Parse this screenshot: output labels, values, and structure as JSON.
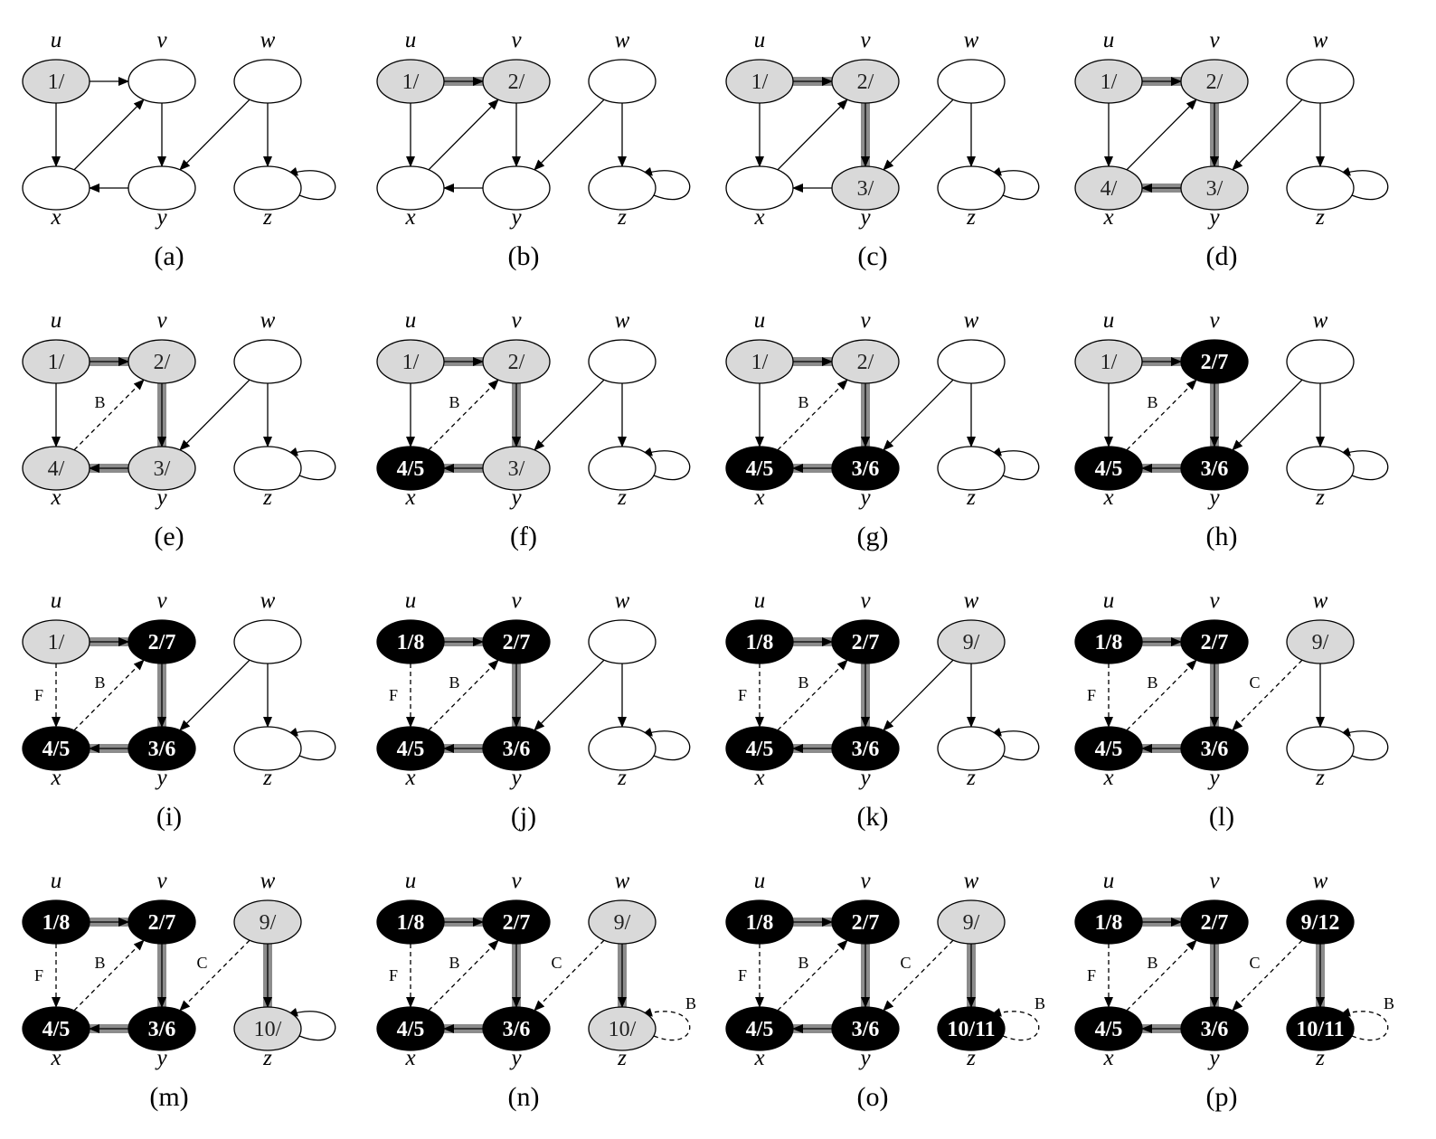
{
  "colors": {
    "white": "#ffffff",
    "gray": "#d9d9d9",
    "black": "#000000",
    "tree_edge": "#8c8c8c"
  },
  "vertex_names": [
    "u",
    "v",
    "w",
    "x",
    "y",
    "z"
  ],
  "edges": [
    {
      "from": "u",
      "to": "v"
    },
    {
      "from": "u",
      "to": "x"
    },
    {
      "from": "x",
      "to": "v"
    },
    {
      "from": "v",
      "to": "y"
    },
    {
      "from": "y",
      "to": "x"
    },
    {
      "from": "w",
      "to": "y"
    },
    {
      "from": "w",
      "to": "z"
    },
    {
      "from": "z",
      "to": "z"
    }
  ],
  "panels": [
    {
      "caption": "(a)",
      "vertices": {
        "u": {
          "color": "gray",
          "label": "1/"
        },
        "v": {
          "color": "white",
          "label": ""
        },
        "w": {
          "color": "white",
          "label": ""
        },
        "x": {
          "color": "white",
          "label": ""
        },
        "y": {
          "color": "white",
          "label": ""
        },
        "z": {
          "color": "white",
          "label": ""
        }
      },
      "edge_types": {}
    },
    {
      "caption": "(b)",
      "vertices": {
        "u": {
          "color": "gray",
          "label": "1/"
        },
        "v": {
          "color": "gray",
          "label": "2/"
        },
        "w": {
          "color": "white",
          "label": ""
        },
        "x": {
          "color": "white",
          "label": ""
        },
        "y": {
          "color": "white",
          "label": ""
        },
        "z": {
          "color": "white",
          "label": ""
        }
      },
      "edge_types": {
        "u-v": "T"
      }
    },
    {
      "caption": "(c)",
      "vertices": {
        "u": {
          "color": "gray",
          "label": "1/"
        },
        "v": {
          "color": "gray",
          "label": "2/"
        },
        "w": {
          "color": "white",
          "label": ""
        },
        "x": {
          "color": "white",
          "label": ""
        },
        "y": {
          "color": "gray",
          "label": "3/"
        },
        "z": {
          "color": "white",
          "label": ""
        }
      },
      "edge_types": {
        "u-v": "T",
        "v-y": "T"
      }
    },
    {
      "caption": "(d)",
      "vertices": {
        "u": {
          "color": "gray",
          "label": "1/"
        },
        "v": {
          "color": "gray",
          "label": "2/"
        },
        "w": {
          "color": "white",
          "label": ""
        },
        "x": {
          "color": "gray",
          "label": "4/"
        },
        "y": {
          "color": "gray",
          "label": "3/"
        },
        "z": {
          "color": "white",
          "label": ""
        }
      },
      "edge_types": {
        "u-v": "T",
        "v-y": "T",
        "y-x": "T"
      }
    },
    {
      "caption": "(e)",
      "vertices": {
        "u": {
          "color": "gray",
          "label": "1/"
        },
        "v": {
          "color": "gray",
          "label": "2/"
        },
        "w": {
          "color": "white",
          "label": ""
        },
        "x": {
          "color": "gray",
          "label": "4/"
        },
        "y": {
          "color": "gray",
          "label": "3/"
        },
        "z": {
          "color": "white",
          "label": ""
        }
      },
      "edge_types": {
        "u-v": "T",
        "v-y": "T",
        "y-x": "T",
        "x-v": "B"
      }
    },
    {
      "caption": "(f)",
      "vertices": {
        "u": {
          "color": "gray",
          "label": "1/"
        },
        "v": {
          "color": "gray",
          "label": "2/"
        },
        "w": {
          "color": "white",
          "label": ""
        },
        "x": {
          "color": "black",
          "label": "4/5"
        },
        "y": {
          "color": "gray",
          "label": "3/"
        },
        "z": {
          "color": "white",
          "label": ""
        }
      },
      "edge_types": {
        "u-v": "T",
        "v-y": "T",
        "y-x": "T",
        "x-v": "B"
      }
    },
    {
      "caption": "(g)",
      "vertices": {
        "u": {
          "color": "gray",
          "label": "1/"
        },
        "v": {
          "color": "gray",
          "label": "2/"
        },
        "w": {
          "color": "white",
          "label": ""
        },
        "x": {
          "color": "black",
          "label": "4/5"
        },
        "y": {
          "color": "black",
          "label": "3/6"
        },
        "z": {
          "color": "white",
          "label": ""
        }
      },
      "edge_types": {
        "u-v": "T",
        "v-y": "T",
        "y-x": "T",
        "x-v": "B"
      }
    },
    {
      "caption": "(h)",
      "vertices": {
        "u": {
          "color": "gray",
          "label": "1/"
        },
        "v": {
          "color": "black",
          "label": "2/7"
        },
        "w": {
          "color": "white",
          "label": ""
        },
        "x": {
          "color": "black",
          "label": "4/5"
        },
        "y": {
          "color": "black",
          "label": "3/6"
        },
        "z": {
          "color": "white",
          "label": ""
        }
      },
      "edge_types": {
        "u-v": "T",
        "v-y": "T",
        "y-x": "T",
        "x-v": "B"
      }
    },
    {
      "caption": "(i)",
      "vertices": {
        "u": {
          "color": "gray",
          "label": "1/"
        },
        "v": {
          "color": "black",
          "label": "2/7"
        },
        "w": {
          "color": "white",
          "label": ""
        },
        "x": {
          "color": "black",
          "label": "4/5"
        },
        "y": {
          "color": "black",
          "label": "3/6"
        },
        "z": {
          "color": "white",
          "label": ""
        }
      },
      "edge_types": {
        "u-v": "T",
        "v-y": "T",
        "y-x": "T",
        "x-v": "B",
        "u-x": "F"
      }
    },
    {
      "caption": "(j)",
      "vertices": {
        "u": {
          "color": "black",
          "label": "1/8"
        },
        "v": {
          "color": "black",
          "label": "2/7"
        },
        "w": {
          "color": "white",
          "label": ""
        },
        "x": {
          "color": "black",
          "label": "4/5"
        },
        "y": {
          "color": "black",
          "label": "3/6"
        },
        "z": {
          "color": "white",
          "label": ""
        }
      },
      "edge_types": {
        "u-v": "T",
        "v-y": "T",
        "y-x": "T",
        "x-v": "B",
        "u-x": "F"
      }
    },
    {
      "caption": "(k)",
      "vertices": {
        "u": {
          "color": "black",
          "label": "1/8"
        },
        "v": {
          "color": "black",
          "label": "2/7"
        },
        "w": {
          "color": "gray",
          "label": "9/"
        },
        "x": {
          "color": "black",
          "label": "4/5"
        },
        "y": {
          "color": "black",
          "label": "3/6"
        },
        "z": {
          "color": "white",
          "label": ""
        }
      },
      "edge_types": {
        "u-v": "T",
        "v-y": "T",
        "y-x": "T",
        "x-v": "B",
        "u-x": "F"
      }
    },
    {
      "caption": "(l)",
      "vertices": {
        "u": {
          "color": "black",
          "label": "1/8"
        },
        "v": {
          "color": "black",
          "label": "2/7"
        },
        "w": {
          "color": "gray",
          "label": "9/"
        },
        "x": {
          "color": "black",
          "label": "4/5"
        },
        "y": {
          "color": "black",
          "label": "3/6"
        },
        "z": {
          "color": "white",
          "label": ""
        }
      },
      "edge_types": {
        "u-v": "T",
        "v-y": "T",
        "y-x": "T",
        "x-v": "B",
        "u-x": "F",
        "w-y": "C"
      }
    },
    {
      "caption": "(m)",
      "vertices": {
        "u": {
          "color": "black",
          "label": "1/8"
        },
        "v": {
          "color": "black",
          "label": "2/7"
        },
        "w": {
          "color": "gray",
          "label": "9/"
        },
        "x": {
          "color": "black",
          "label": "4/5"
        },
        "y": {
          "color": "black",
          "label": "3/6"
        },
        "z": {
          "color": "gray",
          "label": "10/"
        }
      },
      "edge_types": {
        "u-v": "T",
        "v-y": "T",
        "y-x": "T",
        "x-v": "B",
        "u-x": "F",
        "w-y": "C",
        "w-z": "T"
      }
    },
    {
      "caption": "(n)",
      "vertices": {
        "u": {
          "color": "black",
          "label": "1/8"
        },
        "v": {
          "color": "black",
          "label": "2/7"
        },
        "w": {
          "color": "gray",
          "label": "9/"
        },
        "x": {
          "color": "black",
          "label": "4/5"
        },
        "y": {
          "color": "black",
          "label": "3/6"
        },
        "z": {
          "color": "gray",
          "label": "10/"
        }
      },
      "edge_types": {
        "u-v": "T",
        "v-y": "T",
        "y-x": "T",
        "x-v": "B",
        "u-x": "F",
        "w-y": "C",
        "w-z": "T",
        "z-z": "B"
      }
    },
    {
      "caption": "(o)",
      "vertices": {
        "u": {
          "color": "black",
          "label": "1/8"
        },
        "v": {
          "color": "black",
          "label": "2/7"
        },
        "w": {
          "color": "gray",
          "label": "9/"
        },
        "x": {
          "color": "black",
          "label": "4/5"
        },
        "y": {
          "color": "black",
          "label": "3/6"
        },
        "z": {
          "color": "black",
          "label": "10/11"
        }
      },
      "edge_types": {
        "u-v": "T",
        "v-y": "T",
        "y-x": "T",
        "x-v": "B",
        "u-x": "F",
        "w-y": "C",
        "w-z": "T",
        "z-z": "B"
      }
    },
    {
      "caption": "(p)",
      "vertices": {
        "u": {
          "color": "black",
          "label": "1/8"
        },
        "v": {
          "color": "black",
          "label": "2/7"
        },
        "w": {
          "color": "black",
          "label": "9/12"
        },
        "x": {
          "color": "black",
          "label": "4/5"
        },
        "y": {
          "color": "black",
          "label": "3/6"
        },
        "z": {
          "color": "black",
          "label": "10/11"
        }
      },
      "edge_types": {
        "u-v": "T",
        "v-y": "T",
        "y-x": "T",
        "x-v": "B",
        "u-x": "F",
        "w-y": "C",
        "w-z": "T",
        "z-z": "B"
      }
    }
  ]
}
